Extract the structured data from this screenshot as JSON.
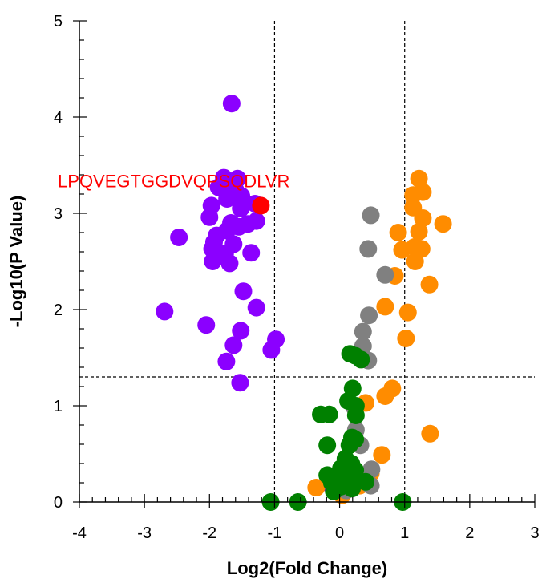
{
  "chart_data": {
    "type": "scatter",
    "xlabel": "Log2(Fold Change)",
    "ylabel": "-Log10(P Value)",
    "xlim": [
      -4,
      3
    ],
    "ylim": [
      0,
      5
    ],
    "x_ticks": [
      "-4",
      "-3",
      "-2",
      "-1",
      "0",
      "1",
      "2",
      "3"
    ],
    "y_ticks": [
      "0",
      "1",
      "2",
      "3",
      "4",
      "5"
    ],
    "thresholds": {
      "x": [
        -1,
        1
      ],
      "y": 1.3
    },
    "annotation": {
      "text": "LPQVEGTGGDVQPSQDLVR",
      "color": "#ff0000",
      "x": -1.21,
      "y": 3.08
    },
    "colors": {
      "down": "#8b00ff",
      "up": "#ff8c00",
      "ns_small": "#808080",
      "ns_low": "#008000",
      "highlight": "#ff0000"
    },
    "series": [
      {
        "color": "#8b00ff",
        "points": [
          [
            -1.66,
            4.14
          ],
          [
            -1.78,
            3.37
          ],
          [
            -1.57,
            3.36
          ],
          [
            -1.86,
            3.27
          ],
          [
            -1.6,
            3.24
          ],
          [
            -1.51,
            3.18
          ],
          [
            -1.73,
            3.15
          ],
          [
            -1.97,
            3.08
          ],
          [
            -1.3,
            3.1
          ],
          [
            -1.52,
            3.05
          ],
          [
            -2.0,
            2.96
          ],
          [
            -1.67,
            2.9
          ],
          [
            -1.55,
            2.86
          ],
          [
            -1.73,
            2.82
          ],
          [
            -1.28,
            2.92
          ],
          [
            -1.41,
            2.89
          ],
          [
            -1.89,
            2.77
          ],
          [
            -2.47,
            2.75
          ],
          [
            -1.93,
            2.7
          ],
          [
            -1.63,
            2.68
          ],
          [
            -1.96,
            2.63
          ],
          [
            -1.76,
            2.58
          ],
          [
            -1.36,
            2.59
          ],
          [
            -1.95,
            2.5
          ],
          [
            -1.69,
            2.48
          ],
          [
            -1.48,
            2.19
          ],
          [
            -1.28,
            2.02
          ],
          [
            -2.69,
            1.98
          ],
          [
            -2.05,
            1.84
          ],
          [
            -1.52,
            1.78
          ],
          [
            -0.98,
            1.69
          ],
          [
            -1.63,
            1.63
          ],
          [
            -1.05,
            1.58
          ],
          [
            -1.74,
            1.46
          ],
          [
            -1.53,
            1.24
          ],
          [
            -0.18,
            0.2
          ]
        ]
      },
      {
        "color": "#ff8c00",
        "points": [
          [
            1.22,
            3.36
          ],
          [
            1.13,
            3.19
          ],
          [
            1.28,
            3.22
          ],
          [
            1.13,
            3.06
          ],
          [
            1.28,
            2.95
          ],
          [
            1.59,
            2.89
          ],
          [
            1.22,
            2.81
          ],
          [
            0.9,
            2.8
          ],
          [
            1.15,
            2.65
          ],
          [
            1.26,
            2.63
          ],
          [
            0.96,
            2.62
          ],
          [
            1.16,
            2.5
          ],
          [
            0.85,
            2.35
          ],
          [
            1.38,
            2.26
          ],
          [
            0.7,
            2.03
          ],
          [
            1.05,
            1.97
          ],
          [
            1.02,
            1.7
          ],
          [
            0.81,
            1.18
          ],
          [
            0.7,
            1.1
          ],
          [
            0.4,
            1.03
          ],
          [
            1.39,
            0.71
          ],
          [
            0.65,
            0.49
          ],
          [
            0.48,
            0.3
          ],
          [
            0.31,
            0.17
          ],
          [
            0.04,
            0.07
          ],
          [
            -0.36,
            0.15
          ]
        ]
      },
      {
        "color": "#808080",
        "points": [
          [
            0.48,
            2.98
          ],
          [
            0.44,
            2.63
          ],
          [
            0.7,
            2.36
          ],
          [
            0.45,
            1.94
          ],
          [
            0.36,
            1.77
          ],
          [
            0.36,
            1.62
          ],
          [
            0.44,
            1.47
          ],
          [
            0.23,
            0.98
          ],
          [
            0.25,
            0.75
          ],
          [
            0.32,
            0.59
          ],
          [
            0.15,
            0.38
          ],
          [
            0.49,
            0.34
          ],
          [
            0.1,
            0.12
          ],
          [
            0.48,
            0.17
          ]
        ]
      },
      {
        "color": "#008000",
        "points": [
          [
            0.16,
            1.54
          ],
          [
            0.24,
            1.52
          ],
          [
            0.33,
            1.48
          ],
          [
            0.2,
            1.18
          ],
          [
            0.13,
            1.05
          ],
          [
            0.25,
            1.0
          ],
          [
            -0.29,
            0.91
          ],
          [
            -0.16,
            0.91
          ],
          [
            0.25,
            0.9
          ],
          [
            0.19,
            0.67
          ],
          [
            0.24,
            0.65
          ],
          [
            -0.19,
            0.59
          ],
          [
            0.15,
            0.59
          ],
          [
            0.09,
            0.45
          ],
          [
            0.18,
            0.4
          ],
          [
            0.02,
            0.35
          ],
          [
            0.24,
            0.33
          ],
          [
            0.11,
            0.29
          ],
          [
            -0.19,
            0.28
          ],
          [
            -0.02,
            0.25
          ],
          [
            0.15,
            0.22
          ],
          [
            -0.12,
            0.2
          ],
          [
            0.4,
            0.21
          ],
          [
            0.02,
            0.16
          ],
          [
            0.19,
            0.14
          ],
          [
            -0.09,
            0.11
          ],
          [
            -1.06,
            0.0
          ],
          [
            -0.64,
            0.0
          ],
          [
            0.97,
            0.0
          ]
        ]
      },
      {
        "color": "#ff0000",
        "points": [
          [
            -1.21,
            3.08
          ]
        ]
      }
    ]
  }
}
